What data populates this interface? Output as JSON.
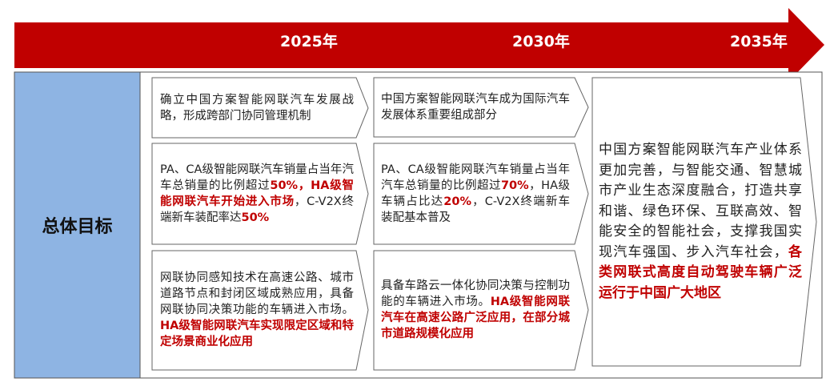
{
  "timeline": [
    "2025年",
    "2030年",
    "2035年"
  ],
  "row_label": "总体目标",
  "columns": [
    {
      "cells": [
        {
          "segments": [
            {
              "text": "确立中国方案智能网联汽车发展战略，形成跨部门协同管理机制"
            }
          ]
        },
        {
          "segments": [
            {
              "text": "PA、CA级智能网联汽车销量占当年汽车总销量的比例超过"
            },
            {
              "red": "50%，HA级智能网联汽车开始进入市场"
            },
            {
              "text": "，C-V2X终端新车装配率达"
            },
            {
              "red": "50%"
            }
          ]
        },
        {
          "segments": [
            {
              "text": "网联协同感知技术在高速公路、城市道路节点和封闭区域成熟应用，具备网联协同决策功能的车辆进入市场。"
            },
            {
              "red": "HA级智能网联汽车实现限定区域和特定场景商业化应用"
            }
          ]
        }
      ]
    },
    {
      "cells": [
        {
          "segments": [
            {
              "text": "中国方案智能网联汽车成为国际汽车发展体系重要组成部分"
            }
          ]
        },
        {
          "segments": [
            {
              "text": "PA、CA级智能网联汽车销量占当年汽车总销量的比例超过"
            },
            {
              "red": "70%"
            },
            {
              "text": "，HA级车辆占比达"
            },
            {
              "red": "20%"
            },
            {
              "text": "，C-V2X终端新车装配基本普及"
            }
          ]
        },
        {
          "segments": [
            {
              "text": "具备车路云一体化协同决策与控制功能的车辆进入市场。"
            },
            {
              "red": "HA级智能网联汽车在高速公路广泛应用，在部分城市道路规模化应用"
            }
          ]
        }
      ]
    },
    {
      "cells": [
        {
          "segments": [
            {
              "text": "中国方案智能网联汽车产业体系更加完善，与智能交通、智慧城市产业生态深度融合，打造共享和谐、绿色环保、互联高效、智能安全的智能社会，支撑我国实现汽车强国、步入汽车社会，"
            },
            {
              "red": "各类网联式高度自动驾驶车辆广泛运行于中国广大地区"
            }
          ]
        }
      ]
    }
  ]
}
